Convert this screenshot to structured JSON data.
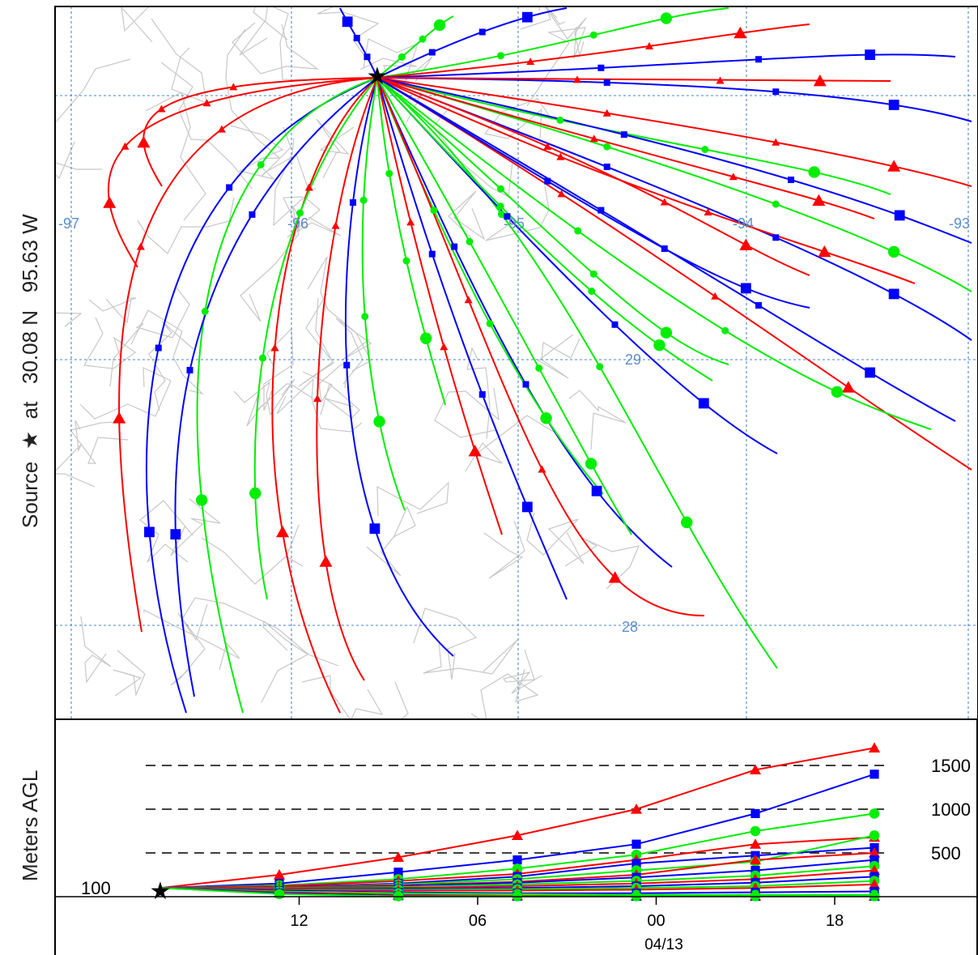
{
  "source_label": {
    "prefix": "Source",
    "at": "at",
    "lat": "30.08 N",
    "lon": "95.63 W"
  },
  "colors": {
    "red": "#ff0000",
    "blue": "#0000ff",
    "green": "#00ee00",
    "grid": "#4a86c8",
    "map": "#c0c0c0",
    "star": "#000000"
  },
  "chart_data": [
    {
      "type": "line",
      "title": "",
      "description_kind": "backward trajectory ensemble map",
      "source": {
        "lat": 30.08,
        "lon": -95.63
      },
      "grid_labels": {
        "lon": [
          "-97",
          "-96",
          "-95",
          "-94",
          "-93"
        ],
        "lat": [
          "29",
          "28"
        ]
      },
      "series": [
        {
          "color": "red",
          "marker": "triangle"
        },
        {
          "color": "blue",
          "marker": "square"
        },
        {
          "color": "green",
          "marker": "circle"
        }
      ]
    },
    {
      "type": "line",
      "ylabel": "Meters AGL",
      "start_height_label": "100",
      "x_tick_labels": [
        "12",
        "06",
        "00",
        "18"
      ],
      "date_label": "04/13",
      "y_levels": [
        500,
        1000,
        1500
      ],
      "y_level_labels": [
        "500",
        "1000",
        "1500"
      ],
      "series": [
        {
          "color": "red",
          "name": "",
          "x": [
            0,
            6,
            12,
            18,
            24,
            30,
            36
          ],
          "y": [
            100,
            250,
            450,
            700,
            1000,
            1450,
            1700
          ]
        },
        {
          "color": "blue",
          "name": "",
          "x": [
            0,
            6,
            12,
            18,
            24,
            30,
            36
          ],
          "y": [
            100,
            150,
            280,
            420,
            600,
            950,
            1400
          ]
        },
        {
          "color": "green",
          "name": "",
          "x": [
            0,
            6,
            12,
            18,
            24,
            30,
            36
          ],
          "y": [
            100,
            130,
            200,
            320,
            480,
            750,
            950
          ]
        },
        {
          "color": "red",
          "name": "",
          "x": [
            0,
            6,
            12,
            18,
            24,
            30,
            36
          ],
          "y": [
            100,
            120,
            180,
            260,
            420,
            600,
            680
          ]
        },
        {
          "color": "blue",
          "name": "",
          "x": [
            0,
            6,
            12,
            18,
            24,
            30,
            36
          ],
          "y": [
            100,
            110,
            150,
            230,
            380,
            470,
            560
          ]
        },
        {
          "color": "green",
          "name": "",
          "x": [
            0,
            6,
            12,
            18,
            24,
            30,
            36
          ],
          "y": [
            100,
            105,
            140,
            200,
            300,
            400,
            700
          ]
        },
        {
          "color": "red",
          "name": "",
          "x": [
            0,
            6,
            12,
            18,
            24,
            30,
            36
          ],
          "y": [
            100,
            110,
            130,
            170,
            250,
            420,
            500
          ]
        },
        {
          "color": "blue",
          "name": "",
          "x": [
            0,
            6,
            12,
            18,
            24,
            30,
            36
          ],
          "y": [
            100,
            100,
            120,
            160,
            220,
            300,
            420
          ]
        },
        {
          "color": "green",
          "name": "",
          "x": [
            0,
            6,
            12,
            18,
            24,
            30,
            36
          ],
          "y": [
            100,
            100,
            110,
            140,
            180,
            240,
            350
          ]
        },
        {
          "color": "red",
          "name": "",
          "x": [
            0,
            6,
            12,
            18,
            24,
            30,
            36
          ],
          "y": [
            100,
            95,
            100,
            120,
            150,
            200,
            300
          ]
        },
        {
          "color": "blue",
          "name": "",
          "x": [
            0,
            6,
            12,
            18,
            24,
            30,
            36
          ],
          "y": [
            100,
            90,
            90,
            100,
            120,
            160,
            230
          ]
        },
        {
          "color": "green",
          "name": "",
          "x": [
            0,
            6,
            12,
            18,
            24,
            30,
            36
          ],
          "y": [
            100,
            85,
            80,
            85,
            100,
            120,
            180
          ]
        },
        {
          "color": "red",
          "name": "",
          "x": [
            0,
            6,
            12,
            18,
            24,
            30,
            36
          ],
          "y": [
            100,
            80,
            70,
            70,
            80,
            100,
            140
          ]
        },
        {
          "color": "blue",
          "name": "",
          "x": [
            0,
            6,
            12,
            18,
            24,
            30,
            36
          ],
          "y": [
            100,
            70,
            50,
            40,
            40,
            50,
            60
          ]
        },
        {
          "color": "green",
          "name": "",
          "x": [
            0,
            6,
            12,
            18,
            24,
            30,
            36
          ],
          "y": [
            100,
            60,
            40,
            30,
            20,
            20,
            20
          ]
        },
        {
          "color": "red",
          "name": "",
          "x": [
            0,
            6,
            12,
            18,
            24,
            30,
            36
          ],
          "y": [
            100,
            50,
            20,
            10,
            5,
            5,
            5
          ]
        },
        {
          "color": "blue",
          "name": "",
          "x": [
            0,
            6,
            12,
            18,
            24,
            30,
            36
          ],
          "y": [
            100,
            40,
            10,
            5,
            5,
            5,
            5
          ]
        },
        {
          "color": "green",
          "name": "",
          "x": [
            0,
            6,
            12,
            18,
            24,
            30,
            36
          ],
          "y": [
            100,
            30,
            5,
            5,
            5,
            5,
            5
          ]
        }
      ]
    }
  ]
}
